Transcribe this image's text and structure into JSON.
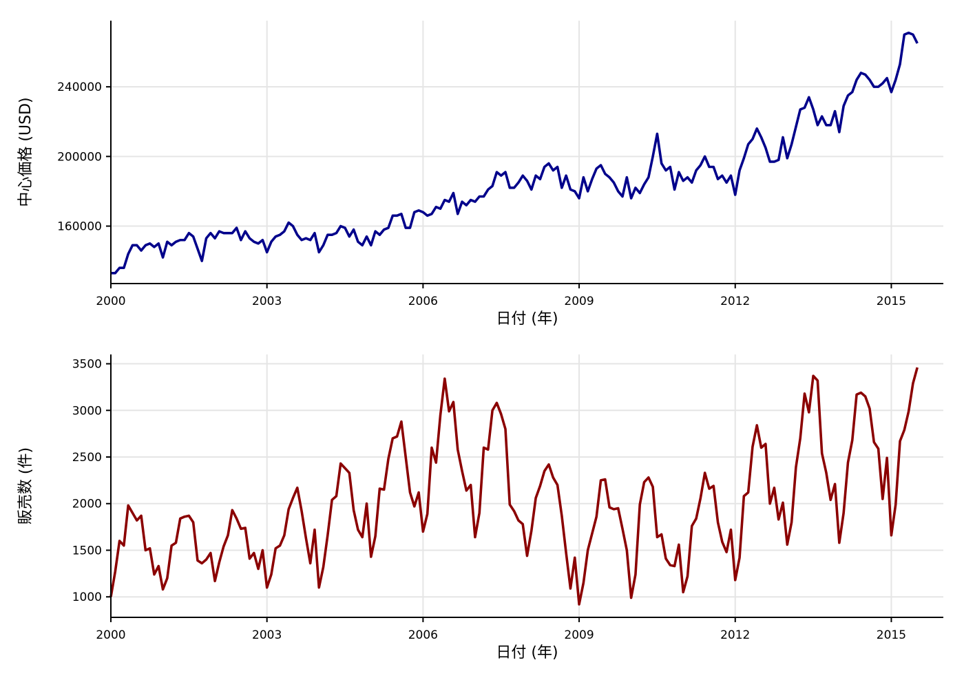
{
  "chart_data": [
    {
      "type": "line",
      "xlabel": "日付 (年)",
      "ylabel": "中心価格 (USD)",
      "xlim": [
        2000,
        2016
      ],
      "ylim": [
        127000,
        278000
      ],
      "x_ticks": [
        2000,
        2003,
        2006,
        2009,
        2012,
        2015
      ],
      "y_ticks": [
        160000,
        200000,
        240000
      ],
      "grid": true,
      "color": "#00008B",
      "series": [
        {
          "x_start": 2000,
          "x_step_months": 1,
          "values": [
            133000,
            133000,
            136000,
            136000,
            144000,
            149000,
            149000,
            146000,
            149000,
            150000,
            148000,
            150000,
            142000,
            151000,
            149000,
            151000,
            152000,
            152000,
            156000,
            154000,
            147000,
            140000,
            153000,
            156000,
            153000,
            157000,
            156000,
            156000,
            156000,
            159000,
            152000,
            157000,
            153000,
            151000,
            150000,
            152000,
            145000,
            151000,
            154000,
            155000,
            157000,
            162000,
            160000,
            155000,
            152000,
            153000,
            152000,
            156000,
            145000,
            149000,
            155000,
            155000,
            156000,
            160000,
            159000,
            154000,
            158000,
            151000,
            149000,
            154000,
            149000,
            157000,
            155000,
            158000,
            159000,
            166000,
            166000,
            167000,
            159000,
            159000,
            168000,
            169000,
            168000,
            166000,
            167000,
            171000,
            170000,
            175000,
            174000,
            179000,
            167000,
            174000,
            172000,
            175000,
            174000,
            177000,
            177000,
            181000,
            183000,
            191000,
            189000,
            191000,
            182000,
            182000,
            185000,
            189000,
            186000,
            181000,
            189000,
            187000,
            194000,
            196000,
            192000,
            194000,
            182000,
            189000,
            181000,
            180000,
            176000,
            188000,
            180000,
            187000,
            193000,
            195000,
            190000,
            188000,
            185000,
            180000,
            177000,
            188000,
            176000,
            182000,
            179000,
            184000,
            188000,
            200000,
            213000,
            196000,
            192000,
            194000,
            181000,
            191000,
            186000,
            188000,
            185000,
            192000,
            195000,
            200000,
            194000,
            194000,
            187000,
            189000,
            185000,
            189000,
            178000,
            192000,
            199000,
            207000,
            210000,
            216000,
            211000,
            205000,
            197000,
            197000,
            198000,
            211000,
            199000,
            207000,
            217000,
            227000,
            228000,
            234000,
            227000,
            218000,
            223000,
            218000,
            218000,
            226000,
            214000,
            229000,
            235000,
            237000,
            244000,
            248000,
            247000,
            244000,
            240000,
            240000,
            242000,
            245000,
            237000,
            244000,
            253000,
            270000,
            271000,
            270000,
            265000
          ]
        }
      ]
    },
    {
      "type": "line",
      "xlabel": "日付 (年)",
      "ylabel": "販売数 (件)",
      "xlim": [
        2000,
        2016
      ],
      "ylim": [
        780,
        3600
      ],
      "x_ticks": [
        2000,
        2003,
        2006,
        2009,
        2012,
        2015
      ],
      "y_ticks": [
        1000,
        1500,
        2000,
        2500,
        3000,
        3500
      ],
      "grid": true,
      "color": "#8B0000",
      "series": [
        {
          "x_start": 2000,
          "x_step_months": 1,
          "values": [
            1000,
            1270,
            1600,
            1550,
            1980,
            1900,
            1820,
            1870,
            1500,
            1520,
            1240,
            1330,
            1080,
            1200,
            1550,
            1580,
            1840,
            1860,
            1870,
            1800,
            1390,
            1360,
            1400,
            1470,
            1170,
            1370,
            1540,
            1660,
            1930,
            1840,
            1730,
            1740,
            1410,
            1470,
            1300,
            1500,
            1100,
            1240,
            1520,
            1550,
            1660,
            1940,
            2060,
            2170,
            1920,
            1630,
            1360,
            1720,
            1100,
            1320,
            1660,
            2040,
            2080,
            2430,
            2380,
            2330,
            1930,
            1720,
            1640,
            2000,
            1430,
            1650,
            2160,
            2150,
            2480,
            2700,
            2720,
            2880,
            2500,
            2120,
            1970,
            2120,
            1700,
            1890,
            2600,
            2440,
            2950,
            3340,
            2990,
            3090,
            2580,
            2350,
            2140,
            2200,
            1640,
            1900,
            2600,
            2580,
            3000,
            3080,
            2960,
            2800,
            1990,
            1920,
            1820,
            1780,
            1440,
            1710,
            2060,
            2190,
            2350,
            2420,
            2280,
            2200,
            1870,
            1470,
            1090,
            1420,
            920,
            1150,
            1500,
            1680,
            1860,
            2250,
            2260,
            1960,
            1940,
            1950,
            1730,
            1500,
            990,
            1240,
            1990,
            2230,
            2280,
            2180,
            1640,
            1670,
            1410,
            1340,
            1330,
            1560,
            1050,
            1220,
            1760,
            1840,
            2060,
            2330,
            2160,
            2190,
            1800,
            1590,
            1480,
            1720,
            1180,
            1420,
            2080,
            2120,
            2610,
            2840,
            2600,
            2640,
            2000,
            2170,
            1830,
            2010,
            1560,
            1800,
            2390,
            2700,
            3180,
            2980,
            3370,
            3320,
            2540,
            2330,
            2040,
            2210,
            1580,
            1900,
            2440,
            2680,
            3170,
            3190,
            3150,
            3020,
            2660,
            2590,
            2050,
            2490,
            1660,
            1990,
            2670,
            2790,
            2990,
            3290,
            3460
          ]
        }
      ]
    }
  ]
}
